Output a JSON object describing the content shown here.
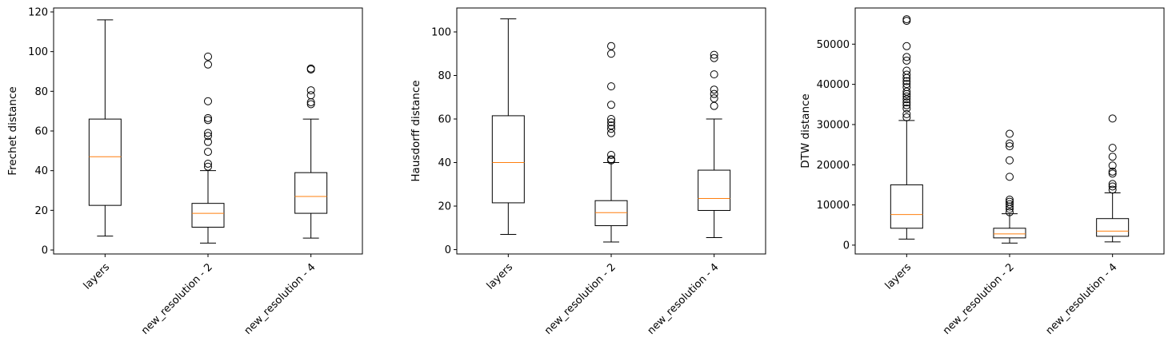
{
  "chart_data": [
    {
      "type": "box",
      "ylabel": "Frechet distance",
      "ylim": [
        -2,
        122
      ],
      "yticks": [
        0,
        20,
        40,
        60,
        80,
        100,
        120
      ],
      "categories": [
        "layers",
        "new_resolution - 2",
        "new_resolution - 4"
      ],
      "boxes": [
        {
          "label": "layers",
          "whisker_low": 7,
          "q1": 22.5,
          "median": 47,
          "q3": 66,
          "whisker_high": 116,
          "outliers": []
        },
        {
          "label": "new_resolution - 2",
          "whisker_low": 3.5,
          "q1": 11.5,
          "median": 18.5,
          "q3": 23.5,
          "whisker_high": 40,
          "outliers": [
            42,
            43.5,
            49.5,
            54.5,
            57.5,
            59,
            65.5,
            66.5,
            75,
            93.5,
            97.5
          ]
        },
        {
          "label": "new_resolution - 4",
          "whisker_low": 6,
          "q1": 18.5,
          "median": 27,
          "q3": 39,
          "whisker_high": 66,
          "outliers": [
            73.5,
            74.5,
            78,
            80.5,
            91,
            91.5
          ]
        }
      ]
    },
    {
      "type": "box",
      "ylabel": "Hausdorff distance",
      "ylim": [
        -2,
        111
      ],
      "yticks": [
        0,
        20,
        40,
        60,
        80,
        100
      ],
      "categories": [
        "layers",
        "new_resolution - 2",
        "new_resolution - 4"
      ],
      "boxes": [
        {
          "label": "layers",
          "whisker_low": 7,
          "q1": 21.5,
          "median": 40,
          "q3": 61.5,
          "whisker_high": 106,
          "outliers": []
        },
        {
          "label": "new_resolution - 2",
          "whisker_low": 3.5,
          "q1": 11,
          "median": 17,
          "q3": 22.5,
          "whisker_high": 40,
          "outliers": [
            41,
            41.5,
            43.5,
            53.5,
            55.5,
            57,
            58.5,
            60,
            66.5,
            75,
            90,
            93.5
          ]
        },
        {
          "label": "new_resolution - 4",
          "whisker_low": 5.5,
          "q1": 18,
          "median": 23.5,
          "q3": 36.5,
          "whisker_high": 60,
          "outliers": [
            66,
            69.5,
            71.5,
            73.5,
            80.5,
            88,
            89.5
          ]
        }
      ]
    },
    {
      "type": "box",
      "ylabel": "DTW distance",
      "ylim": [
        -2200,
        59000
      ],
      "yticks": [
        0,
        10000,
        20000,
        30000,
        40000,
        50000
      ],
      "categories": [
        "layers",
        "new_resolution - 2",
        "new_resolution - 4"
      ],
      "boxes": [
        {
          "label": "layers",
          "whisker_low": 1500,
          "q1": 4200,
          "median": 7600,
          "q3": 15000,
          "whisker_high": 31000,
          "outliers": [
            31800,
            32600,
            34000,
            34800,
            35500,
            36300,
            37000,
            37600,
            38200,
            39300,
            40100,
            40800,
            41600,
            42400,
            43400,
            45900,
            46800,
            49500,
            55800,
            56200
          ]
        },
        {
          "label": "new_resolution - 2",
          "whisker_low": 500,
          "q1": 1800,
          "median": 2800,
          "q3": 4200,
          "whisker_high": 7800,
          "outliers": [
            8200,
            9000,
            9600,
            10200,
            10800,
            11300,
            17000,
            21100,
            24600,
            25300,
            27700
          ]
        },
        {
          "label": "new_resolution - 4",
          "whisker_low": 800,
          "q1": 2200,
          "median": 3500,
          "q3": 6600,
          "whisker_high": 13000,
          "outliers": [
            13800,
            14600,
            15200,
            17800,
            18300,
            19800,
            22000,
            24200,
            31500
          ]
        }
      ]
    }
  ],
  "colors": {
    "box": "#000000",
    "median": "#ff7f0e",
    "outlier": "#000000"
  }
}
